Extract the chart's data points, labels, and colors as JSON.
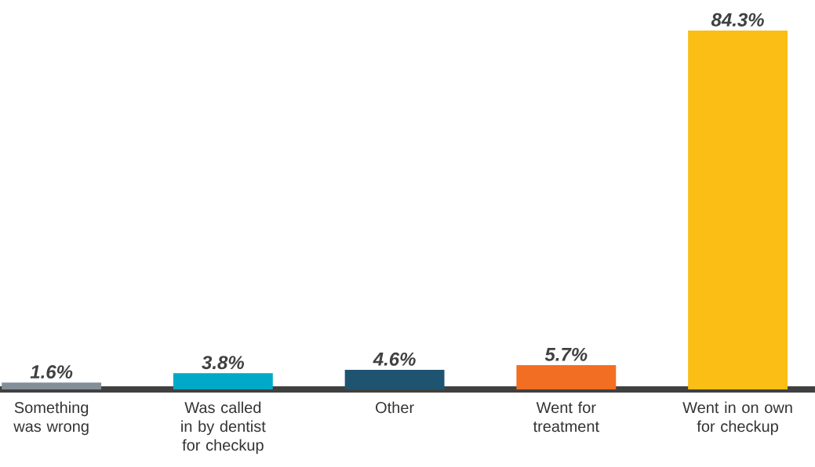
{
  "chart_data": {
    "type": "bar",
    "categories": [
      "Something was wrong",
      "Was called in by dentist for checkup",
      "Other",
      "Went for treatment",
      "Went in on own for checkup"
    ],
    "values": [
      1.6,
      3.8,
      4.6,
      5.7,
      84.3
    ],
    "colors": [
      "#828f99",
      "#00a9c7",
      "#1f5470",
      "#f26e22",
      "#fbbe14"
    ],
    "value_labels": [
      "1.6%",
      "3.8%",
      "4.6%",
      "5.7%",
      "84.3%"
    ]
  }
}
